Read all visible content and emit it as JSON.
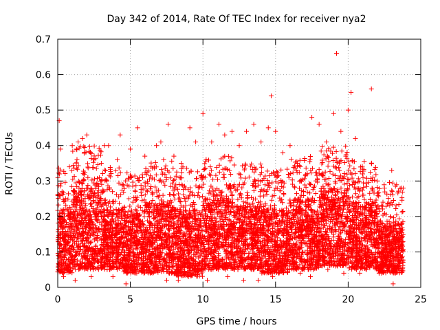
{
  "chart_data": {
    "type": "scatter",
    "title": "Day 342 of 2014, Rate Of TEC Index for receiver nya2",
    "xlabel": "GPS time / hours",
    "ylabel": "ROTI / TECUs",
    "xlim": [
      0,
      25
    ],
    "ylim": [
      0,
      0.7
    ],
    "xticks": [
      0,
      5,
      10,
      15,
      20,
      25
    ],
    "yticks": [
      0,
      0.1,
      0.2,
      0.3,
      0.4,
      0.5,
      0.6,
      0.7
    ],
    "xtick_labels": [
      "0",
      "5",
      "10",
      "15",
      "20",
      "25"
    ],
    "ytick_labels": [
      "0",
      "0.1",
      "0.2",
      "0.3",
      "0.4",
      "0.5",
      "0.6",
      "0.7"
    ],
    "grid": true,
    "marker": "+",
    "color": "#ff0000",
    "series": [
      {
        "name": "ROTI",
        "points": [
          [
            0.1,
            0.47
          ],
          [
            0.2,
            0.39
          ],
          [
            0.3,
            0.27
          ],
          [
            0.5,
            0.22
          ],
          [
            0.8,
            0.34
          ],
          [
            1.0,
            0.4
          ],
          [
            1.4,
            0.41
          ],
          [
            1.7,
            0.42
          ],
          [
            2.0,
            0.43
          ],
          [
            2.5,
            0.36
          ],
          [
            3.0,
            0.35
          ],
          [
            3.2,
            0.4
          ],
          [
            3.5,
            0.4
          ],
          [
            4.1,
            0.36
          ],
          [
            4.3,
            0.43
          ],
          [
            5.0,
            0.39
          ],
          [
            5.5,
            0.45
          ],
          [
            6.0,
            0.37
          ],
          [
            6.8,
            0.4
          ],
          [
            7.1,
            0.41
          ],
          [
            7.6,
            0.46
          ],
          [
            8.0,
            0.37
          ],
          [
            8.5,
            0.35
          ],
          [
            9.1,
            0.45
          ],
          [
            9.5,
            0.41
          ],
          [
            10.0,
            0.49
          ],
          [
            10.6,
            0.41
          ],
          [
            11.1,
            0.46
          ],
          [
            11.5,
            0.43
          ],
          [
            12.0,
            0.44
          ],
          [
            12.5,
            0.4
          ],
          [
            13.0,
            0.44
          ],
          [
            13.5,
            0.46
          ],
          [
            14.0,
            0.41
          ],
          [
            14.5,
            0.45
          ],
          [
            14.7,
            0.54
          ],
          [
            15.0,
            0.44
          ],
          [
            15.5,
            0.38
          ],
          [
            16.0,
            0.4
          ],
          [
            16.5,
            0.35
          ],
          [
            17.5,
            0.48
          ],
          [
            18.0,
            0.46
          ],
          [
            18.5,
            0.41
          ],
          [
            19.0,
            0.49
          ],
          [
            19.2,
            0.66
          ],
          [
            19.5,
            0.44
          ],
          [
            20.0,
            0.5
          ],
          [
            20.2,
            0.55
          ],
          [
            20.5,
            0.42
          ],
          [
            21.0,
            0.32
          ],
          [
            21.6,
            0.56
          ],
          [
            22.0,
            0.3
          ],
          [
            22.5,
            0.28
          ],
          [
            23.0,
            0.33
          ],
          [
            23.3,
            0.23
          ],
          [
            0.4,
            0.03
          ],
          [
            1.2,
            0.02
          ],
          [
            2.3,
            0.03
          ],
          [
            3.8,
            0.03
          ],
          [
            4.7,
            0.01
          ],
          [
            6.4,
            0.04
          ],
          [
            7.5,
            0.02
          ],
          [
            8.3,
            0.02
          ],
          [
            9.0,
            0.03
          ],
          [
            10.3,
            0.02
          ],
          [
            11.7,
            0.03
          ],
          [
            12.8,
            0.02
          ],
          [
            13.8,
            0.02
          ],
          [
            14.8,
            0.03
          ],
          [
            16.7,
            0.04
          ],
          [
            17.4,
            0.03
          ],
          [
            18.6,
            0.05
          ],
          [
            19.7,
            0.04
          ],
          [
            20.8,
            0.04
          ],
          [
            22.3,
            0.04
          ],
          [
            23.1,
            0.01
          ]
        ]
      }
    ],
    "density_profile": [
      {
        "x_range": [
          0,
          1
        ],
        "y_range": [
          0.04,
          0.22
        ]
      },
      {
        "x_range": [
          1,
          3
        ],
        "y_range": [
          0.05,
          0.28
        ]
      },
      {
        "x_range": [
          3,
          4.5
        ],
        "y_range": [
          0.05,
          0.22
        ]
      },
      {
        "x_range": [
          4.5,
          6
        ],
        "y_range": [
          0.04,
          0.21
        ]
      },
      {
        "x_range": [
          6,
          8
        ],
        "y_range": [
          0.04,
          0.24
        ]
      },
      {
        "x_range": [
          8,
          10
        ],
        "y_range": [
          0.03,
          0.22
        ]
      },
      {
        "x_range": [
          10,
          12
        ],
        "y_range": [
          0.05,
          0.25
        ]
      },
      {
        "x_range": [
          12,
          14
        ],
        "y_range": [
          0.05,
          0.23
        ]
      },
      {
        "x_range": [
          14,
          16
        ],
        "y_range": [
          0.04,
          0.22
        ]
      },
      {
        "x_range": [
          16,
          17.5
        ],
        "y_range": [
          0.05,
          0.25
        ]
      },
      {
        "x_range": [
          17.5,
          18
        ],
        "y_range": [
          0.05,
          0.22
        ]
      },
      {
        "x_range": [
          18,
          20
        ],
        "y_range": [
          0.06,
          0.28
        ]
      },
      {
        "x_range": [
          20,
          22
        ],
        "y_range": [
          0.05,
          0.24
        ]
      },
      {
        "x_range": [
          22,
          23.8
        ],
        "y_range": [
          0.04,
          0.18
        ]
      }
    ]
  }
}
